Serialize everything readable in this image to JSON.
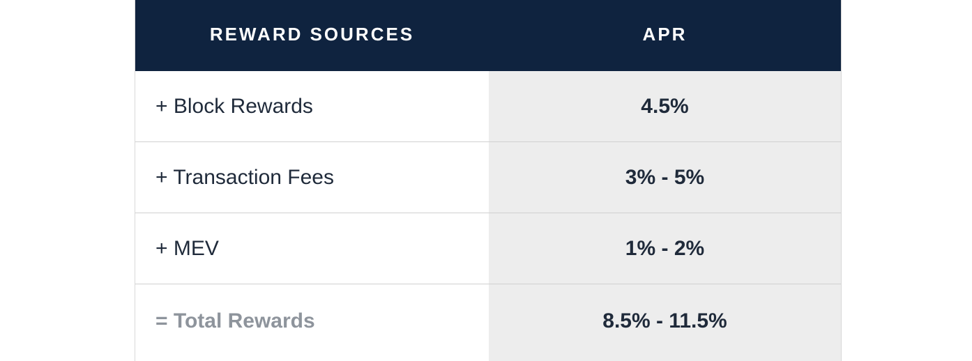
{
  "table": {
    "headers": {
      "source": "REWARD SOURCES",
      "apr": "APR"
    },
    "rows": [
      {
        "source": "+ Block Rewards",
        "apr": "4.5%"
      },
      {
        "source": "+ Transaction Fees",
        "apr": "3% - 5%"
      },
      {
        "source": "+ MEV",
        "apr": "1% - 2%"
      }
    ],
    "total": {
      "source": "= Total Rewards",
      "apr": "8.5% - 11.5%"
    }
  },
  "colors": {
    "header_bg": "#0f233f",
    "value_bg": "#ededed",
    "total_label": "#8e949c"
  }
}
